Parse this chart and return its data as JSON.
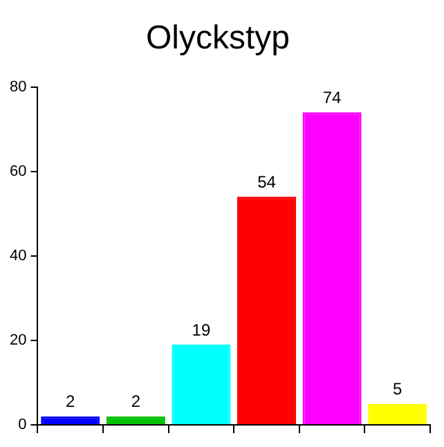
{
  "chart_data": {
    "type": "bar",
    "title": "Olyckstyp",
    "categories": [
      null,
      null,
      null,
      null,
      null,
      null
    ],
    "values": [
      2,
      2,
      19,
      54,
      74,
      5
    ],
    "colors": [
      "#0000ff",
      "#00c000",
      "#00ffff",
      "#ff0000",
      "#ff00ff",
      "#ffff00"
    ],
    "ylim": [
      0,
      80
    ],
    "yticks": [
      0,
      20,
      40,
      60,
      80
    ],
    "grid": false,
    "legend": false,
    "data_labels": true,
    "tick_labels": "y"
  }
}
